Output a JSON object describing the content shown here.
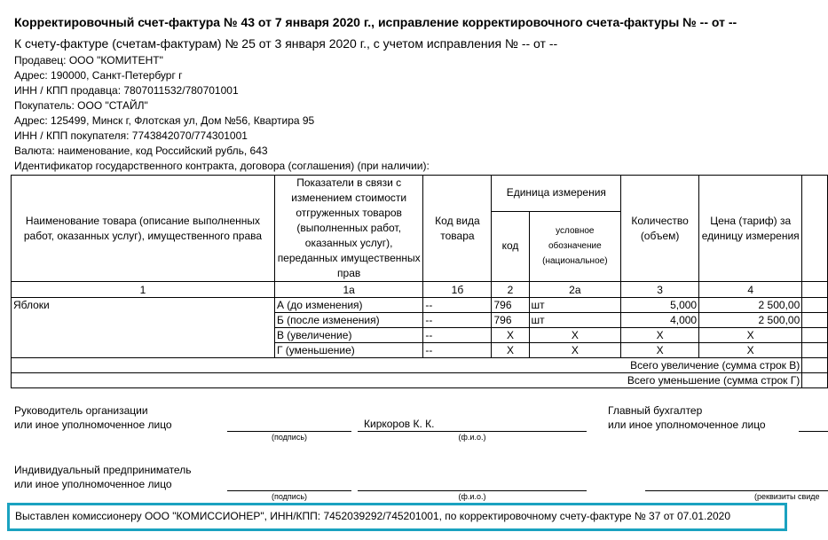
{
  "header": {
    "title": "Корректировочный счет-фактура № 43 от 7 января 2020 г., исправление корректировочного счета-фактуры № -- от --",
    "subtitle": "К счету-фактуре (счетам-фактурам) № 25 от 3 января 2020 г., с учетом исправления № -- от --",
    "lines": [
      "Продавец: ООО \"КОМИТЕНТ\"",
      "Адрес: 190000, Санкт-Петербург г",
      "ИНН / КПП продавца: 7807011532/780701001",
      "Покупатель: ООО \"СТАЙЛ\"",
      "Адрес: 125499, Минск г, Флотская ул, Дом №56, Квартира 95",
      "ИНН / КПП покупателя: 7743842070/774301001",
      "Валюта: наименование, код Российский рубль, 643",
      "Идентификатор государственного контракта, договора (соглашения) (при наличии):"
    ]
  },
  "table": {
    "headers": {
      "name": "Наименование товара (описание выполненных работ, оказанных услуг), имущественного права",
      "indicators": "Показатели в связи с изменением стоимости отгруженных товаров (выполненных работ, оказанных услуг), переданных имущественных прав",
      "kind_code": "Код вида товара",
      "unit": "Единица измерения",
      "unit_code": "код",
      "unit_name": "условное обозначение (национальное)",
      "qty": "Количество (объем)",
      "price": "Цена (тариф) за единицу измерения"
    },
    "numbers": [
      "1",
      "1а",
      "1б",
      "2",
      "2а",
      "3",
      "4"
    ],
    "product": "Яблоки",
    "rows": [
      {
        "indicator": "А (до изменения)",
        "kind": "--",
        "code": "796",
        "unit": "шт",
        "qty": "5,000",
        "price": "2 500,00"
      },
      {
        "indicator": "Б (после изменения)",
        "kind": "--",
        "code": "796",
        "unit": "шт",
        "qty": "4,000",
        "price": "2 500,00"
      },
      {
        "indicator": "В (увеличение)",
        "kind": "--",
        "code": "X",
        "unit": "X",
        "qty": "X",
        "price": "X"
      },
      {
        "indicator": "Г (уменьшение)",
        "kind": "--",
        "code": "X",
        "unit": "X",
        "qty": "X",
        "price": "X"
      }
    ],
    "total_increase": "Всего увеличение (сумма строк В)",
    "total_decrease": "Всего уменьшение (сумма строк Г)"
  },
  "signatures": {
    "head_l1": "Руководитель организации",
    "head_l2": "или иное уполномоченное лицо",
    "head_name": "Киркоров К. К.",
    "accountant_l1": "Главный бухгалтер",
    "accountant_l2": "или иное уполномоченное лицо",
    "ip_l1": "Индивидуальный предприниматель",
    "ip_l2": "или иное уполномоченное лицо",
    "cap_sign": "(подпись)",
    "cap_fio": "(ф.и.о.)",
    "cap_req": "(реквизиты свиде"
  },
  "note": "Выставлен комиссионеру ООО \"КОМИССИОНЕР\", ИНН/КПП: 7452039292/745201001, по корректировочному счету-фактуре № 37 от 07.01.2020"
}
